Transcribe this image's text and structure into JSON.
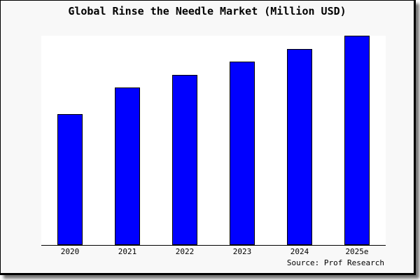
{
  "chart_data": {
    "type": "bar",
    "title": "Global Rinse the Needle Market (Million USD)",
    "categories": [
      "2020",
      "2021",
      "2022",
      "2023",
      "2024",
      "2025e"
    ],
    "values": [
      62.7,
      75.2,
      81.3,
      87.7,
      93.7,
      100
    ],
    "xlabel": "",
    "ylabel": "",
    "ylim": [
      0,
      100
    ],
    "grid": false,
    "legend": false,
    "y_axis_shown": false,
    "bar_color": "#0000ff",
    "bar_edge_color": "#000000",
    "plot_background": "#ffffff",
    "figure_background": "#f8f8f8"
  },
  "source": {
    "label": "Source: Prof Research"
  }
}
